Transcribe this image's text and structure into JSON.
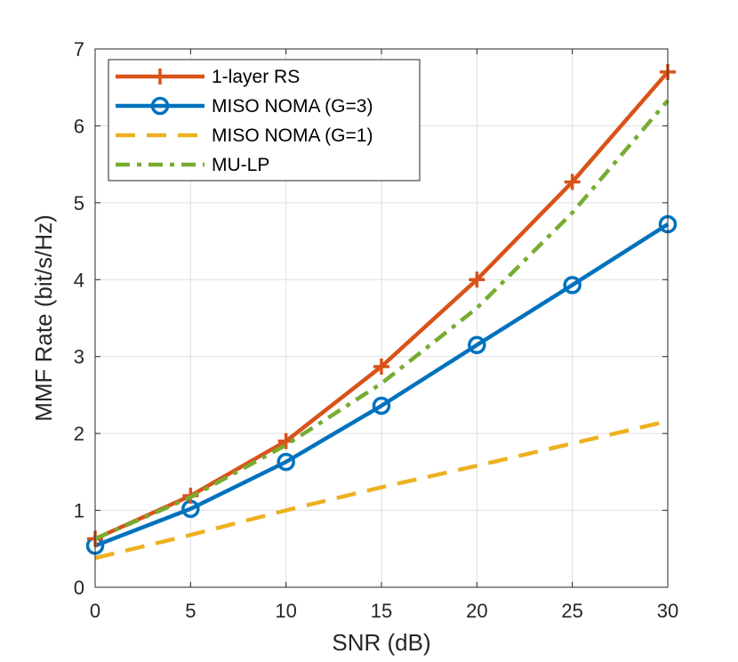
{
  "chart_data": {
    "type": "line",
    "title": "",
    "xlabel": "SNR (dB)",
    "ylabel": "MMF Rate (bit/s/Hz)",
    "xlim": [
      0,
      30
    ],
    "ylim": [
      0,
      7
    ],
    "xticks": [
      0,
      5,
      10,
      15,
      20,
      25,
      30
    ],
    "yticks": [
      0,
      1,
      2,
      3,
      4,
      5,
      6,
      7
    ],
    "grid": true,
    "legend_position": "top-left",
    "x": [
      0,
      5,
      10,
      15,
      20,
      25,
      30
    ],
    "series": [
      {
        "name": "1-layer RS",
        "values": [
          0.63,
          1.19,
          1.9,
          2.87,
          4.0,
          5.27,
          6.7
        ],
        "color": "#D95319",
        "style": "solid",
        "marker": "plus"
      },
      {
        "name": "MISO NOMA (G=3)",
        "values": [
          0.54,
          1.02,
          1.63,
          2.36,
          3.15,
          3.93,
          4.72
        ],
        "color": "#0072BD",
        "style": "solid",
        "marker": "circle"
      },
      {
        "name": "MISO NOMA (G=1)",
        "values": [
          0.38,
          0.68,
          1.0,
          1.3,
          1.58,
          1.87,
          2.16
        ],
        "color": "#EDB120",
        "style": "dashed",
        "marker": "none"
      },
      {
        "name": "MU-LP",
        "values": [
          0.63,
          1.17,
          1.85,
          2.65,
          3.63,
          4.87,
          6.33
        ],
        "color": "#77AC30",
        "style": "dashdot",
        "marker": "none"
      }
    ]
  }
}
